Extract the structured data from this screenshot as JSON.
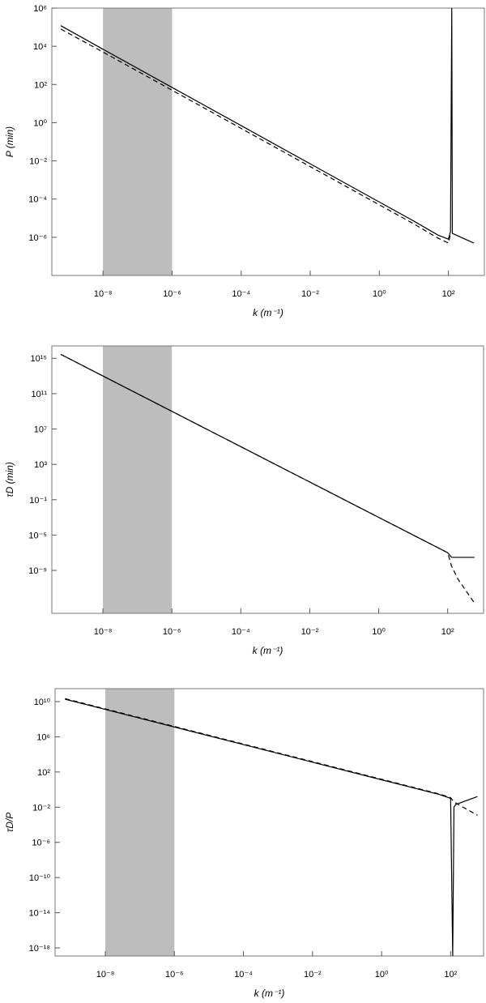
{
  "chart_data": [
    {
      "type": "line",
      "log_x": true,
      "log_y": true,
      "x_label": "k (m⁻¹)",
      "y_label": "P (min)",
      "shaded_x_range": [
        1e-08,
        1e-06
      ],
      "shade_color": "#bdbdbd",
      "xlim": [
        3.3e-10,
        1100.0
      ],
      "ylim": [
        1e-08,
        1000000.0
      ],
      "xticks": [
        {
          "value": 1e-08,
          "label": "10⁻⁸"
        },
        {
          "value": 1e-06,
          "label": "10⁻⁶"
        },
        {
          "value": 0.0001,
          "label": "10⁻⁴"
        },
        {
          "value": 0.01,
          "label": "10⁻²"
        },
        {
          "value": 1,
          "label": "10⁰"
        },
        {
          "value": 100,
          "label": "10²"
        }
      ],
      "yticks": [
        {
          "value": 1e-06,
          "label": "10⁻⁶"
        },
        {
          "value": 0.0001,
          "label": "10⁻⁴"
        },
        {
          "value": 0.01,
          "label": "10⁻²"
        },
        {
          "value": 1,
          "label": "10⁰"
        },
        {
          "value": 100,
          "label": "10²"
        },
        {
          "value": 10000.0,
          "label": "10⁴"
        },
        {
          "value": 1000000.0,
          "label": "10⁶"
        }
      ],
      "x": [
        6e-10,
        1e-08,
        1e-06,
        0.0001,
        0.01,
        1,
        10,
        50,
        100,
        115,
        125,
        130,
        540
      ],
      "series": [
        {
          "color": "#000000",
          "style": "solid",
          "values": [
            120000.0,
            7000.0,
            70,
            0.7,
            0.007,
            7e-05,
            7e-06,
            1.3e-06,
            8e-07,
            2e-06,
            1000000.0,
            1.6e-06,
            5e-07
          ]
        },
        {
          "color": "#000000",
          "style": "dashed",
          "values": [
            80000.0,
            5000.0,
            50,
            0.5,
            0.005,
            5e-05,
            5e-06,
            9e-07,
            5e-07,
            1.5e-06,
            null,
            null,
            null
          ]
        }
      ]
    },
    {
      "type": "line",
      "log_x": true,
      "log_y": true,
      "x_label": "k (m⁻¹)",
      "y_label": "τD (min)",
      "shaded_x_range": [
        1e-08,
        1e-06
      ],
      "shade_color": "#bdbdbd",
      "xlim": [
        3.3e-10,
        1100.0
      ],
      "ylim": [
        1.4e-14,
        2.5e+16
      ],
      "xticks": [
        {
          "value": 1e-08,
          "label": "10⁻⁸"
        },
        {
          "value": 1e-06,
          "label": "10⁻⁶"
        },
        {
          "value": 0.0001,
          "label": "10⁻⁴"
        },
        {
          "value": 0.01,
          "label": "10⁻²"
        },
        {
          "value": 1,
          "label": "10⁰"
        },
        {
          "value": 100,
          "label": "10²"
        }
      ],
      "yticks": [
        {
          "value": 1e-09,
          "label": "10⁻⁹"
        },
        {
          "value": 1e-05,
          "label": "10⁻⁵"
        },
        {
          "value": 0.1,
          "label": "10⁻¹"
        },
        {
          "value": 1000.0,
          "label": "10³"
        },
        {
          "value": 10000000.0,
          "label": "10⁷"
        },
        {
          "value": 100000000000.0,
          "label": "10¹¹"
        },
        {
          "value": 1000000000000000.0,
          "label": "10¹⁵"
        }
      ],
      "x": [
        6e-10,
        1e-08,
        1e-06,
        0.0001,
        0.01,
        1,
        100,
        130,
        200,
        600
      ],
      "series": [
        {
          "color": "#000000",
          "style": "solid",
          "values": [
            2800000000000000.0,
            10000000000000.0,
            1000000000.0,
            100000.0,
            10,
            0.001,
            1e-07,
            3e-08,
            3e-08,
            3e-08
          ]
        },
        {
          "color": "#000000",
          "style": "dashed",
          "values": [
            2800000000000000.0,
            10000000000000.0,
            1000000000.0,
            100000.0,
            10,
            0.001,
            1e-07,
            3e-09,
            1e-10,
            2e-13
          ]
        }
      ]
    },
    {
      "type": "line",
      "log_x": true,
      "log_y": true,
      "x_label": "k (m⁻¹)",
      "y_label": "τD/P",
      "shaded_x_range": [
        1e-08,
        1e-06
      ],
      "shade_color": "#bdbdbd",
      "xlim": [
        3.5e-10,
        900.0
      ],
      "ylim": [
        1.2e-19,
        300000000000.0
      ],
      "xticks": [
        {
          "value": 1e-08,
          "label": "10⁻⁸"
        },
        {
          "value": 1e-06,
          "label": "10⁻⁶"
        },
        {
          "value": 0.0001,
          "label": "10⁻⁴"
        },
        {
          "value": 0.01,
          "label": "10⁻²"
        },
        {
          "value": 1,
          "label": "10⁰"
        },
        {
          "value": 100,
          "label": "10²"
        }
      ],
      "yticks": [
        {
          "value": 1e-18,
          "label": "10⁻¹⁸"
        },
        {
          "value": 1e-14,
          "label": "10⁻¹⁴"
        },
        {
          "value": 1e-10,
          "label": "10⁻¹⁰"
        },
        {
          "value": 1e-06,
          "label": "10⁻⁶"
        },
        {
          "value": 0.01,
          "label": "10⁻²"
        },
        {
          "value": 100,
          "label": "10²"
        },
        {
          "value": 1000000.0,
          "label": "10⁶"
        },
        {
          "value": 10000000000.0,
          "label": "10¹⁰"
        }
      ],
      "x": [
        6.8e-10,
        1e-08,
        1e-06,
        0.0001,
        0.01,
        1,
        50,
        100,
        115,
        125,
        140,
        600
      ],
      "series": [
        {
          "color": "#000000",
          "style": "solid",
          "values": [
            19000000000.0,
            1300000000.0,
            13000000.0,
            130000.0,
            1300.0,
            13,
            0.26,
            0.1,
            1.2e-19,
            0.01,
            0.02,
            0.16
          ]
        },
        {
          "color": "#000000",
          "style": "dashed",
          "values": [
            22000000000.0,
            1500000000.0,
            15000000.0,
            150000.0,
            1500.0,
            15,
            0.3,
            0.12,
            0.06,
            0.04,
            0.03,
            0.0012
          ]
        }
      ]
    }
  ]
}
